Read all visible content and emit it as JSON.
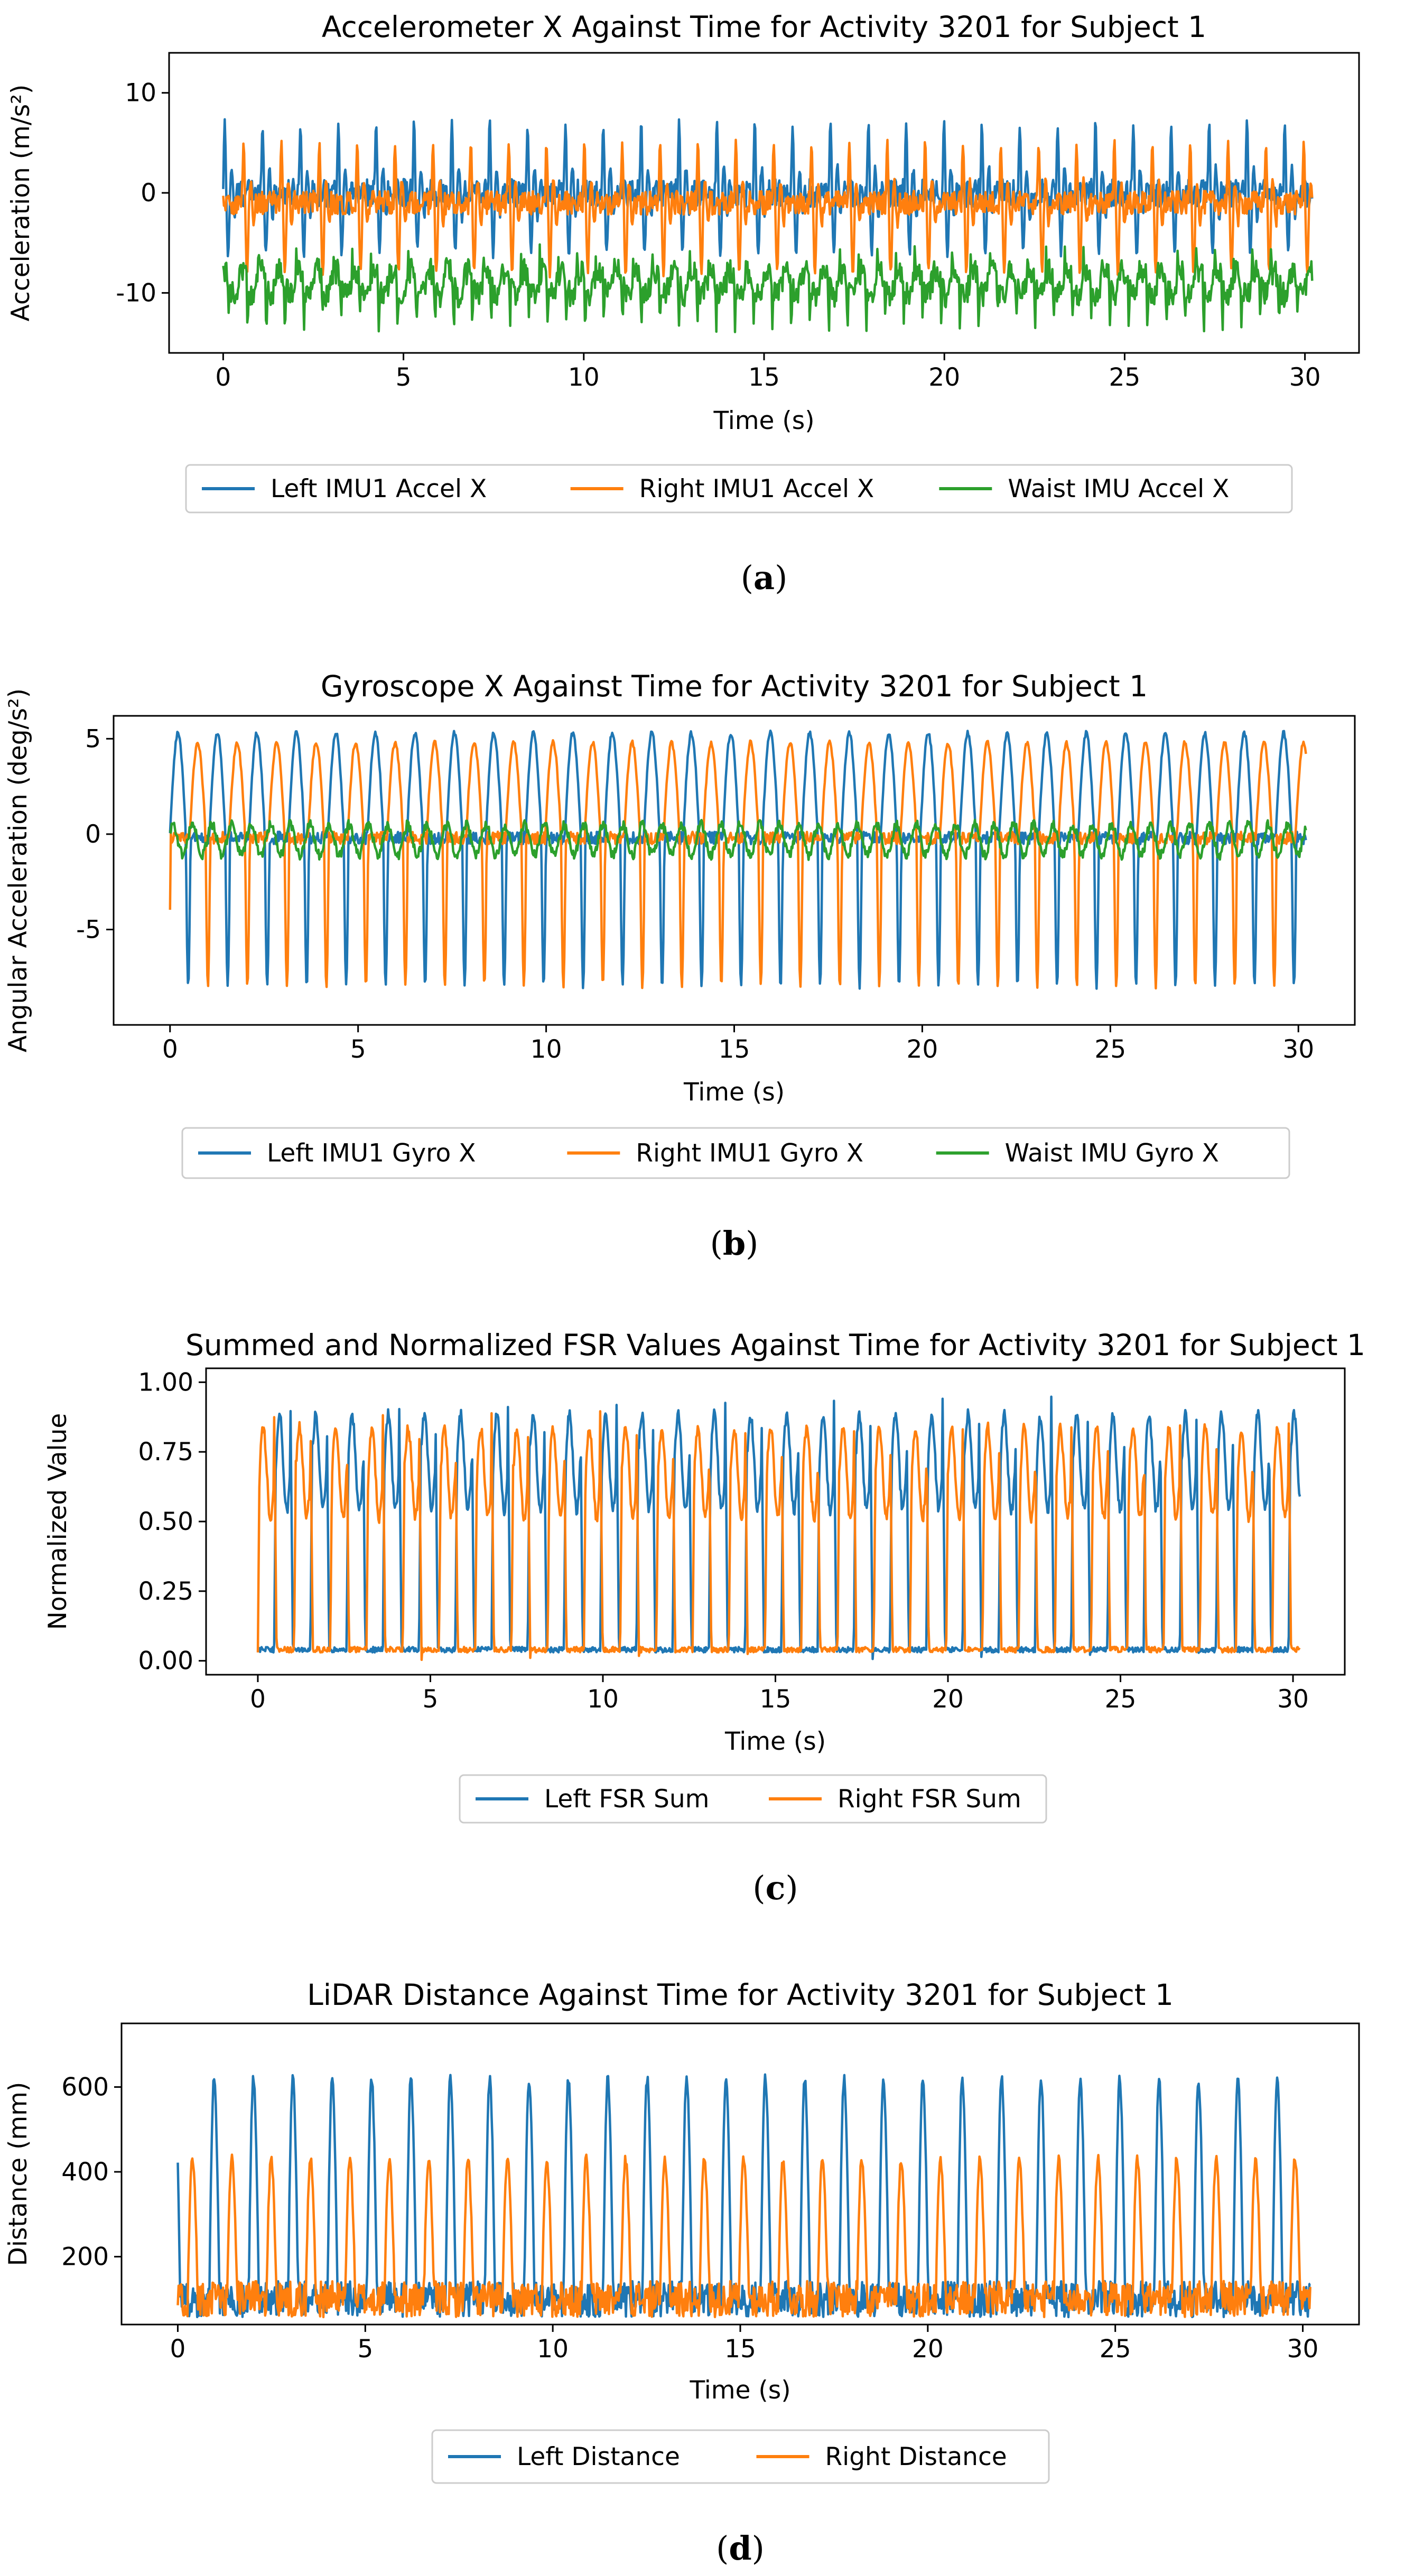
{
  "chart_data": [
    {
      "type": "line",
      "title": "Accelerometer X Against Time for Activity 3201 for Subject 1",
      "xlabel": "Time (s)",
      "ylabel": "Acceleration (m/s²)",
      "xlim": [
        -1.5,
        31.5
      ],
      "ylim": [
        -16,
        14
      ],
      "xticks": [
        0,
        5,
        10,
        15,
        20,
        25,
        30
      ],
      "yticks": [
        -10,
        0,
        10
      ],
      "caption_letter": "a",
      "legend": "bottom-center-outside",
      "series": [
        {
          "name": "Left IMU1 Accel X",
          "color": "#1f77b4",
          "baseline": 0,
          "peak": 7,
          "trough": -6,
          "period": 1.05,
          "phase": 0.0,
          "shape": "impulse"
        },
        {
          "name": "Right IMU1 Accel X",
          "color": "#ff7f0e",
          "baseline": -1,
          "peak": 5,
          "trough": -8,
          "period": 1.05,
          "phase": 0.5,
          "shape": "impulse"
        },
        {
          "name": "Waist IMU Accel X",
          "color": "#2ca02c",
          "baseline": -9,
          "peak": -6.5,
          "trough": -14,
          "period": 0.52,
          "phase": 0.2,
          "shape": "noisy"
        }
      ]
    },
    {
      "type": "line",
      "title": "Gyroscope X Against Time for Activity 3201 for Subject 1",
      "xlabel": "Time (s)",
      "ylabel": "Angular Acceleration (deg/s²)",
      "xlim": [
        -1.5,
        31.5
      ],
      "ylim": [
        -10,
        6.2
      ],
      "xticks": [
        0,
        5,
        10,
        15,
        20,
        25,
        30
      ],
      "yticks": [
        -5,
        0,
        5
      ],
      "caption_letter": "b",
      "legend": "bottom-center-outside",
      "series": [
        {
          "name": "Left IMU1 Gyro X",
          "color": "#1f77b4",
          "baseline": 0,
          "peak": 5.3,
          "trough": -8,
          "period": 1.05,
          "phase": 0.0,
          "shape": "gyro"
        },
        {
          "name": "Right IMU1 Gyro X",
          "color": "#ff7f0e",
          "baseline": 0,
          "peak": 4.8,
          "trough": -8,
          "period": 1.05,
          "phase": 0.5,
          "shape": "gyro"
        },
        {
          "name": "Waist IMU Gyro X",
          "color": "#2ca02c",
          "baseline": -0.3,
          "peak": 1.0,
          "trough": -1.2,
          "period": 0.52,
          "phase": 0.1,
          "shape": "smallwave"
        }
      ]
    },
    {
      "type": "line",
      "title": "Summed and Normalized FSR Values Against Time for Activity 3201 for Subject 1",
      "xlabel": "Time (s)",
      "ylabel": "Normalized Value",
      "xlim": [
        -1.5,
        31.5
      ],
      "ylim": [
        -0.05,
        1.05
      ],
      "xticks": [
        0,
        5,
        10,
        15,
        20,
        25,
        30
      ],
      "yticks": [
        0.0,
        0.25,
        0.5,
        0.75,
        1.0
      ],
      "ytick_labels": [
        "0.00",
        "0.25",
        "0.50",
        "0.75",
        "1.00"
      ],
      "caption_letter": "c",
      "legend": "bottom-center-outside",
      "series": [
        {
          "name": "Left FSR Sum",
          "color": "#1f77b4",
          "baseline": 0.05,
          "peak": 0.95,
          "trough": 0.03,
          "period": 1.05,
          "phase": 0.55,
          "shape": "fsr"
        },
        {
          "name": "Right FSR Sum",
          "color": "#ff7f0e",
          "baseline": 0.05,
          "peak": 0.9,
          "trough": 0.03,
          "period": 1.05,
          "phase": 0.0,
          "shape": "fsr"
        }
      ]
    },
    {
      "type": "line",
      "title": "LiDAR Distance Against Time for Activity 3201 for Subject 1",
      "xlabel": "Time (s)",
      "ylabel": "Distance (mm)",
      "xlim": [
        -1.5,
        31.5
      ],
      "ylim": [
        40,
        750
      ],
      "xticks": [
        0,
        5,
        10,
        15,
        20,
        25,
        30
      ],
      "yticks": [
        200,
        400,
        600
      ],
      "caption_letter": "d",
      "legend": "bottom-center-outside",
      "series": [
        {
          "name": "Left Distance",
          "color": "#1f77b4",
          "baseline": 100,
          "peak": 620,
          "trough": 70,
          "period": 1.05,
          "phase": 0.2,
          "shape": "lidar"
        },
        {
          "name": "Right Distance",
          "color": "#ff7f0e",
          "baseline": 100,
          "peak": 430,
          "trough": 70,
          "period": 1.05,
          "phase": 0.75,
          "shape": "lidar"
        }
      ]
    }
  ]
}
